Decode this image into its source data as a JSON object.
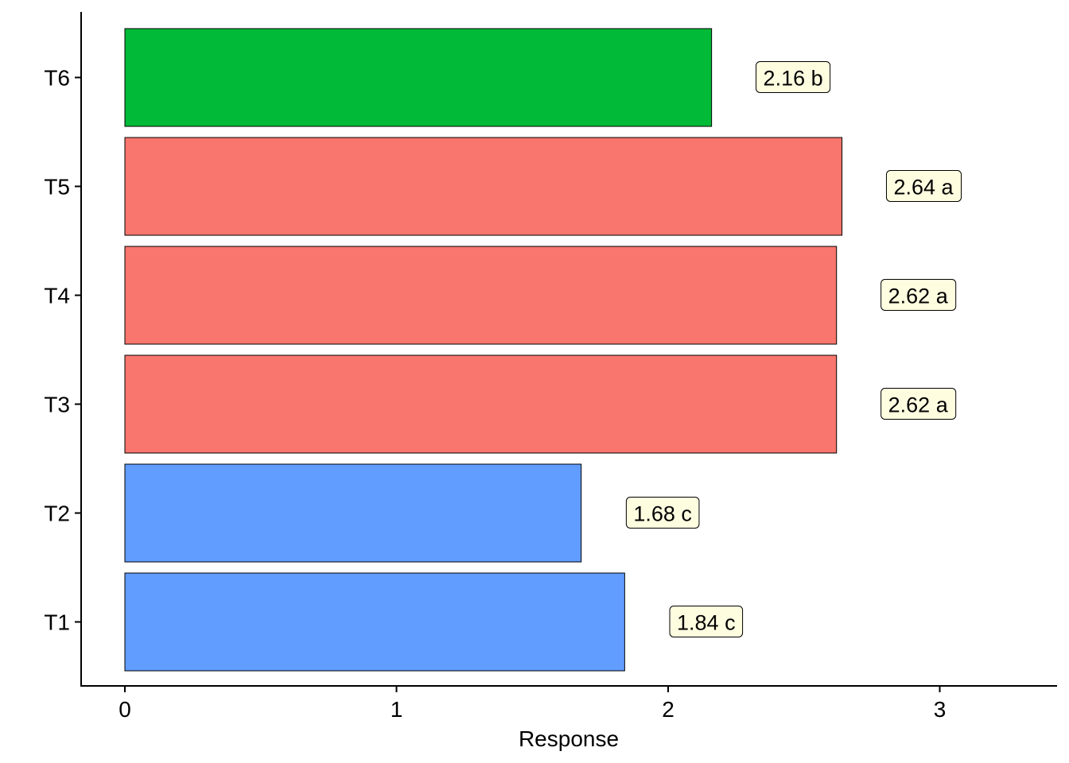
{
  "chart_data": {
    "type": "bar",
    "orientation": "horizontal",
    "categories": [
      "T1",
      "T2",
      "T3",
      "T4",
      "T5",
      "T6"
    ],
    "values": [
      1.84,
      1.68,
      2.62,
      2.62,
      2.64,
      2.16
    ],
    "group_letters": [
      "c",
      "c",
      "a",
      "a",
      "a",
      "b"
    ],
    "data_labels": [
      "1.84 c",
      "1.68 c",
      "2.62 a",
      "2.62 a",
      "2.64 a",
      "2.16 b"
    ],
    "bar_colors": [
      "#619CFF",
      "#619CFF",
      "#F8766D",
      "#F8766D",
      "#F8766D",
      "#00BA38"
    ],
    "label_fill": "#FFFDE0",
    "xlabel": "Response",
    "ylabel": "",
    "title": "",
    "xlim": [
      -0.16,
      3.44
    ],
    "xticks": [
      0,
      1,
      2,
      3
    ],
    "xtick_labels": [
      "0",
      "1",
      "2",
      "3"
    ],
    "grid": false,
    "legend": "none"
  }
}
